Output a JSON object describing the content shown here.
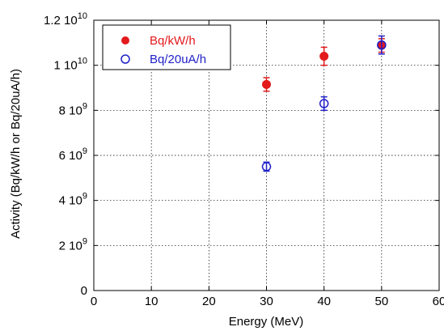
{
  "chart_data": {
    "type": "scatter",
    "title": "",
    "xlabel": "Energy (MeV)",
    "ylabel": "Activity (Bq/kW/h or Bq/20uA/h)",
    "xlim": [
      0,
      60
    ],
    "ylim": [
      0,
      12000000000
    ],
    "grid": true,
    "legend_position": "top-left",
    "x_ticks": [
      {
        "value": 0,
        "label": "0"
      },
      {
        "value": 10,
        "label": "10"
      },
      {
        "value": 20,
        "label": "20"
      },
      {
        "value": 30,
        "label": "30"
      },
      {
        "value": 40,
        "label": "40"
      },
      {
        "value": 50,
        "label": "50"
      },
      {
        "value": 60,
        "label": "60"
      }
    ],
    "y_ticks": [
      {
        "value": 0,
        "mantissa": "0",
        "exponent": ""
      },
      {
        "value": 2000000000,
        "mantissa": "2 10",
        "exponent": "9"
      },
      {
        "value": 4000000000,
        "mantissa": "4 10",
        "exponent": "9"
      },
      {
        "value": 6000000000,
        "mantissa": "6 10",
        "exponent": "9"
      },
      {
        "value": 8000000000,
        "mantissa": "8 10",
        "exponent": "9"
      },
      {
        "value": 10000000000,
        "mantissa": "1 10",
        "exponent": "10"
      },
      {
        "value": 12000000000,
        "mantissa": "1.2 10",
        "exponent": "10"
      }
    ],
    "series": [
      {
        "name": "Bq/kW/h",
        "color": "#e31a1c",
        "marker": "filled-circle",
        "x": [
          30,
          40,
          50
        ],
        "y": [
          9150000000,
          10400000000,
          10880000000
        ],
        "yerr": [
          300000000,
          400000000,
          300000000
        ]
      },
      {
        "name": "Bq/20uA/h",
        "color": "#1f1fc8",
        "marker": "open-circle",
        "x": [
          30,
          40,
          50
        ],
        "y": [
          5500000000,
          8300000000,
          10900000000
        ],
        "yerr": [
          200000000,
          300000000,
          400000000
        ]
      }
    ]
  }
}
